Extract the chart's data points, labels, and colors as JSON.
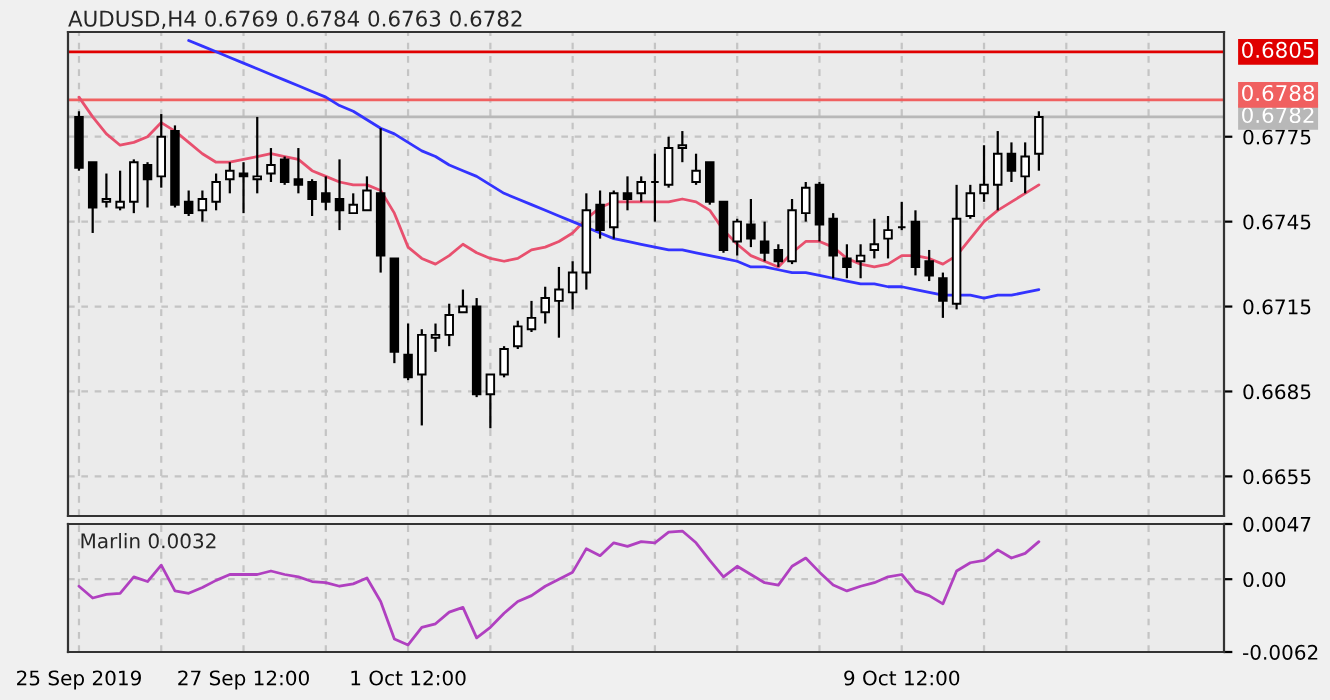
{
  "chart_data": [
    {
      "type": "candlestick",
      "title": "AUDUSD,H4 0.6769 0.6784 0.6763 0.6782",
      "categories": [
        null,
        null,
        null,
        null,
        null,
        null,
        null,
        null,
        null,
        null,
        null,
        null,
        null,
        null,
        null,
        null,
        null,
        null,
        null,
        null,
        null,
        null,
        null,
        null,
        null,
        null,
        null,
        null,
        null,
        null,
        null,
        null,
        null,
        null,
        null,
        null,
        null,
        null,
        null,
        null,
        null,
        null,
        null,
        null,
        null,
        null,
        null,
        null,
        null,
        null,
        null,
        null,
        null,
        null,
        null,
        null,
        null,
        null,
        null,
        null,
        null,
        null,
        null,
        null,
        null,
        null,
        null,
        null,
        null,
        null,
        null
      ],
      "ohlc": [
        [
          0.6782,
          0.6784,
          0.6763,
          0.6764
        ],
        [
          0.6766,
          0.6766,
          0.6741,
          0.675
        ],
        [
          0.6752,
          0.6762,
          0.675,
          0.6753
        ],
        [
          0.675,
          0.6763,
          0.6749,
          0.6752
        ],
        [
          0.6752,
          0.6767,
          0.6748,
          0.6766
        ],
        [
          0.6765,
          0.6766,
          0.675,
          0.676
        ],
        [
          0.6761,
          0.6783,
          0.6757,
          0.6775
        ],
        [
          0.6777,
          0.6779,
          0.675,
          0.6751
        ],
        [
          0.6752,
          0.6756,
          0.6747,
          0.6748
        ],
        [
          0.6749,
          0.6756,
          0.6745,
          0.6753
        ],
        [
          0.6752,
          0.6762,
          0.6749,
          0.6759
        ],
        [
          0.676,
          0.6766,
          0.6755,
          0.6763
        ],
        [
          0.6762,
          0.6766,
          0.6748,
          0.6761
        ],
        [
          0.676,
          0.6782,
          0.6755,
          0.6761
        ],
        [
          0.6762,
          0.6771,
          0.6759,
          0.6765
        ],
        [
          0.6767,
          0.6768,
          0.6758,
          0.6759
        ],
        [
          0.676,
          0.6771,
          0.6755,
          0.6758
        ],
        [
          0.6759,
          0.676,
          0.6747,
          0.6753
        ],
        [
          0.6755,
          0.6761,
          0.6749,
          0.6752
        ],
        [
          0.6753,
          0.6767,
          0.6742,
          0.6749
        ],
        [
          0.6748,
          0.6755,
          0.6748,
          0.6751
        ],
        [
          0.6749,
          0.6761,
          0.6749,
          0.6756
        ],
        [
          0.6755,
          0.6778,
          0.6727,
          0.6733
        ],
        [
          0.6732,
          0.6732,
          0.6695,
          0.6699
        ],
        [
          0.6698,
          0.6709,
          0.6689,
          0.669
        ],
        [
          0.6691,
          0.6707,
          0.6673,
          0.6705
        ],
        [
          0.6704,
          0.6709,
          0.6699,
          0.6705
        ],
        [
          0.6705,
          0.6716,
          0.6701,
          0.6712
        ],
        [
          0.6713,
          0.6721,
          0.6713,
          0.6715
        ],
        [
          0.6715,
          0.6718,
          0.6683,
          0.6684
        ],
        [
          0.6684,
          0.6691,
          0.6672,
          0.6691
        ],
        [
          0.6691,
          0.6701,
          0.669,
          0.67
        ],
        [
          0.6701,
          0.671,
          0.67,
          0.6708
        ],
        [
          0.6707,
          0.6717,
          0.6706,
          0.6711
        ],
        [
          0.6713,
          0.6722,
          0.6709,
          0.6718
        ],
        [
          0.6717,
          0.6729,
          0.6704,
          0.6721
        ],
        [
          0.672,
          0.6731,
          0.6714,
          0.6727
        ],
        [
          0.6727,
          0.6755,
          0.6721,
          0.6749
        ],
        [
          0.6751,
          0.6756,
          0.6739,
          0.6742
        ],
        [
          0.6743,
          0.6756,
          0.6739,
          0.6755
        ],
        [
          0.6755,
          0.6761,
          0.6749,
          0.6753
        ],
        [
          0.6755,
          0.6761,
          0.6752,
          0.6759
        ],
        [
          0.6759,
          0.6769,
          0.6745,
          0.6759
        ],
        [
          0.6758,
          0.6775,
          0.6757,
          0.6771
        ],
        [
          0.6771,
          0.6777,
          0.6766,
          0.6772
        ],
        [
          0.6759,
          0.6769,
          0.6758,
          0.6763
        ],
        [
          0.6766,
          0.6766,
          0.6751,
          0.6752
        ],
        [
          0.6752,
          0.6752,
          0.6734,
          0.6735
        ],
        [
          0.6738,
          0.6746,
          0.6733,
          0.6745
        ],
        [
          0.6744,
          0.6753,
          0.6736,
          0.6739
        ],
        [
          0.6738,
          0.6745,
          0.6731,
          0.6734
        ],
        [
          0.6735,
          0.6737,
          0.6729,
          0.6731
        ],
        [
          0.6731,
          0.6753,
          0.673,
          0.6749
        ],
        [
          0.6748,
          0.6759,
          0.6745,
          0.6757
        ],
        [
          0.6758,
          0.6759,
          0.6738,
          0.6744
        ],
        [
          0.6746,
          0.6748,
          0.6725,
          0.6733
        ],
        [
          0.6732,
          0.6737,
          0.6725,
          0.6729
        ],
        [
          0.6731,
          0.6737,
          0.6725,
          0.6733
        ],
        [
          0.6735,
          0.6746,
          0.6732,
          0.6737
        ],
        [
          0.6739,
          0.6747,
          0.6732,
          0.6742
        ],
        [
          0.6743,
          0.6752,
          0.6742,
          0.6743
        ],
        [
          0.6745,
          0.6749,
          0.6726,
          0.6729
        ],
        [
          0.6731,
          0.6735,
          0.6724,
          0.6726
        ],
        [
          0.6725,
          0.6727,
          0.6711,
          0.6717
        ],
        [
          0.6716,
          0.6758,
          0.6714,
          0.6746
        ],
        [
          0.6747,
          0.6758,
          0.6746,
          0.6755
        ],
        [
          0.6755,
          0.6772,
          0.6752,
          0.6758
        ],
        [
          0.6758,
          0.6777,
          0.6749,
          0.6769
        ],
        [
          0.6769,
          0.6773,
          0.6759,
          0.6763
        ],
        [
          0.6761,
          0.6773,
          0.6755,
          0.6768
        ],
        [
          0.6769,
          0.6784,
          0.6763,
          0.6782
        ]
      ],
      "series": [
        {
          "type": "line",
          "color": "#e8506e",
          "values": [
            0.6789,
            0.6782,
            0.6776,
            0.6772,
            0.6773,
            0.6775,
            0.678,
            0.6777,
            0.6773,
            0.6769,
            0.6766,
            0.6766,
            0.6767,
            0.6768,
            0.6769,
            0.6768,
            0.6767,
            0.6763,
            0.6761,
            0.6759,
            0.6758,
            0.6758,
            0.6756,
            0.6748,
            0.6736,
            0.6732,
            0.673,
            0.6733,
            0.6737,
            0.6734,
            0.6732,
            0.6731,
            0.6732,
            0.6735,
            0.6736,
            0.6738,
            0.6741,
            0.6746,
            0.675,
            0.6752,
            0.6752,
            0.6752,
            0.6752,
            0.6752,
            0.6753,
            0.6752,
            0.6749,
            0.6742,
            0.6737,
            0.6733,
            0.6731,
            0.6729,
            0.6734,
            0.6738,
            0.6738,
            0.6736,
            0.6732,
            0.673,
            0.6729,
            0.673,
            0.6733,
            0.6733,
            0.6732,
            0.673,
            0.6733,
            0.6739,
            0.6745,
            0.6749,
            0.6752,
            0.6755,
            0.6758
          ]
        },
        {
          "type": "line",
          "color": "#3333ff",
          "values": [
            null,
            null,
            null,
            null,
            null,
            null,
            null,
            null,
            0.6809,
            0.6807,
            0.6805,
            0.6803,
            0.6801,
            0.6799,
            0.6797,
            0.6795,
            0.6793,
            0.6791,
            0.6789,
            0.6786,
            0.6784,
            0.6781,
            0.6778,
            0.6776,
            0.6773,
            0.677,
            0.6768,
            0.6765,
            0.6763,
            0.6761,
            0.6758,
            0.6755,
            0.6753,
            0.6751,
            0.6749,
            0.6747,
            0.6745,
            0.6743,
            0.6741,
            0.6739,
            0.6738,
            0.6737,
            0.6736,
            0.6735,
            0.6735,
            0.6734,
            0.6733,
            0.6732,
            0.6731,
            0.6729,
            0.6729,
            0.6728,
            0.6727,
            0.6727,
            0.6726,
            0.6725,
            0.6724,
            0.6723,
            0.6723,
            0.6722,
            0.6722,
            0.6721,
            0.672,
            0.6719,
            0.6719,
            0.6719,
            0.6718,
            0.6719,
            0.6719,
            0.672,
            0.6721
          ]
        }
      ],
      "ylim": [
        0.6641,
        0.6812
      ],
      "yticks": [
        0.6655,
        0.6685,
        0.6715,
        0.6745,
        0.6775
      ],
      "ref_lines": [
        {
          "axis": "y",
          "value": 0.6805,
          "label": "0.6805",
          "color": "#e00000"
        },
        {
          "axis": "y",
          "value": 0.6788,
          "label": "0.6788",
          "color": "#f06060"
        },
        {
          "axis": "y",
          "value": 0.6782,
          "label": "0.6782",
          "color": "#b8b8b8"
        }
      ],
      "grid": true,
      "tick_labels": "y"
    },
    {
      "type": "line",
      "title": "Marlin 0.0032",
      "categories": [
        "25 Sep 2019",
        null,
        null,
        null,
        null,
        null,
        null,
        null,
        null,
        null,
        null,
        null,
        "27 Sep 12:00",
        null,
        null,
        null,
        null,
        null,
        null,
        null,
        null,
        null,
        null,
        null,
        "1 Oct 12:00",
        null,
        null,
        null,
        null,
        null,
        null,
        null,
        null,
        null,
        null,
        null,
        null,
        null,
        null,
        null,
        null,
        null,
        null,
        null,
        null,
        null,
        null,
        null,
        null,
        null,
        null,
        null,
        null,
        null,
        null,
        null,
        null,
        null,
        null,
        null,
        "9 Oct 12:00",
        null,
        null,
        null,
        null,
        null,
        null,
        null,
        null,
        null,
        null
      ],
      "series": [
        {
          "color": "#b040c0",
          "values": [
            -0.0006,
            -0.0016,
            -0.0013,
            -0.0012,
            0.0002,
            -0.0002,
            0.0012,
            -0.001,
            -0.0012,
            -0.0007,
            -0.0001,
            0.0004,
            0.0004,
            0.0004,
            0.0007,
            0.0004,
            0.0002,
            -0.0002,
            -0.0003,
            -0.0006,
            -0.0004,
            0.0001,
            -0.0019,
            -0.0051,
            -0.0056,
            -0.0041,
            -0.0038,
            -0.0028,
            -0.0024,
            -0.005,
            -0.0041,
            -0.0029,
            -0.0019,
            -0.0014,
            -0.0006,
            0.0,
            0.0006,
            0.0026,
            0.002,
            0.0031,
            0.0028,
            0.0032,
            0.0031,
            0.004,
            0.0041,
            0.0031,
            0.0016,
            0.0002,
            0.0011,
            0.0004,
            -0.0003,
            -0.0005,
            0.0011,
            0.0018,
            0.0006,
            -0.0005,
            -0.001,
            -0.0006,
            -0.0003,
            0.0002,
            0.0004,
            -0.001,
            -0.0014,
            -0.0021,
            0.0007,
            0.0014,
            0.0016,
            0.0025,
            0.0018,
            0.0022,
            0.0032
          ]
        }
      ],
      "ylim": [
        -0.0062,
        0.0047
      ],
      "yticks": [
        -0.0062,
        {
          "value": 0,
          "label": "0.00"
        },
        0.0047
      ],
      "grid": true
    }
  ]
}
